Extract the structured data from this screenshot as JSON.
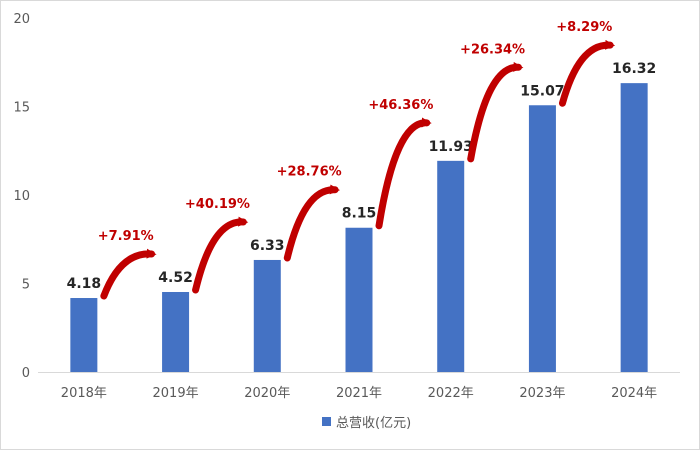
{
  "chart_data": {
    "type": "bar",
    "categories": [
      "2018年",
      "2019年",
      "2020年",
      "2021年",
      "2022年",
      "2023年",
      "2024年"
    ],
    "series": [
      {
        "name": "总营收(亿元)",
        "values": [
          4.18,
          4.52,
          6.33,
          8.15,
          11.93,
          15.07,
          16.32
        ]
      }
    ],
    "data_labels": [
      "4.18",
      "4.52",
      "6.33",
      "8.15",
      "11.93",
      "15.07",
      "16.32"
    ],
    "growth_labels": [
      "+7.91%",
      "+40.19%",
      "+28.76%",
      "+46.36%",
      "+26.34%",
      "+8.29%"
    ],
    "ylim": [
      0,
      20
    ],
    "yticks": [
      0,
      5,
      10,
      15,
      20
    ],
    "grid": false,
    "legend": "bottom",
    "colors": {
      "bar": "#4472c4",
      "growth": "#c00000"
    }
  }
}
